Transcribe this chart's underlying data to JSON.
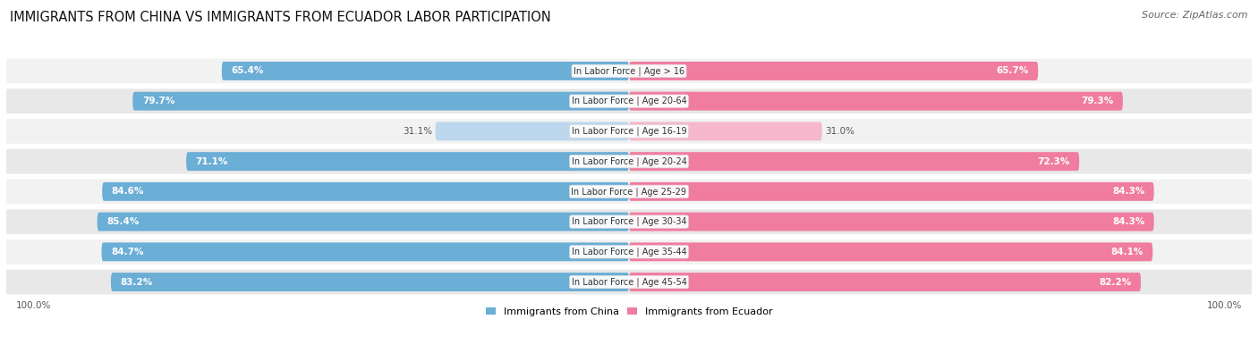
{
  "title": "IMMIGRANTS FROM CHINA VS IMMIGRANTS FROM ECUADOR LABOR PARTICIPATION",
  "source": "Source: ZipAtlas.com",
  "categories": [
    "In Labor Force | Age > 16",
    "In Labor Force | Age 20-64",
    "In Labor Force | Age 16-19",
    "In Labor Force | Age 20-24",
    "In Labor Force | Age 25-29",
    "In Labor Force | Age 30-34",
    "In Labor Force | Age 35-44",
    "In Labor Force | Age 45-54"
  ],
  "china_values": [
    65.4,
    79.7,
    31.1,
    71.1,
    84.6,
    85.4,
    84.7,
    83.2
  ],
  "ecuador_values": [
    65.7,
    79.3,
    31.0,
    72.3,
    84.3,
    84.3,
    84.1,
    82.2
  ],
  "china_color": "#6baed6",
  "china_color_light": "#bdd7ee",
  "ecuador_color": "#f07ca0",
  "ecuador_color_light": "#f5b8cc",
  "row_bg_even": "#f2f2f2",
  "row_bg_odd": "#e8e8e8",
  "label_color_dark": "#555555",
  "label_color_white": "#ffffff",
  "max_value": 100.0,
  "legend_china": "Immigrants from China",
  "legend_ecuador": "Immigrants from Ecuador",
  "title_fontsize": 10.5,
  "source_fontsize": 8,
  "bar_label_fontsize": 7.5,
  "category_fontsize": 7,
  "legend_fontsize": 8,
  "axis_label_fontsize": 7.5
}
